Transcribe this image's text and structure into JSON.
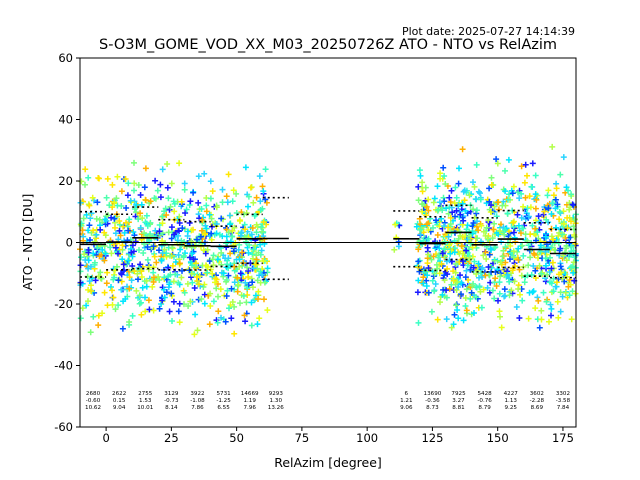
{
  "chart_data": {
    "type": "scatter",
    "plot_date": "Plot date: 2025-07-27 14:14:39",
    "title": "S-O3M_GOME_VOD_XX_M03_20250726Z ATO - NTO vs RelAzim",
    "xlabel": "RelAzim [degree]",
    "ylabel": "ATO - NTO [DU]",
    "xlim": [
      -10,
      180
    ],
    "ylim": [
      -60,
      60
    ],
    "xticks": [
      0,
      25,
      50,
      75,
      100,
      125,
      150,
      175
    ],
    "yticks": [
      -60,
      -40,
      -20,
      0,
      20,
      40,
      60
    ],
    "marker": "+",
    "grid": false,
    "point_colors": [
      "#2ad4ff",
      "#00e5ff",
      "#3affc4",
      "#4dffad",
      "#7dff7a",
      "#b3ff4a",
      "#e6ff1a",
      "#ffe600",
      "#ffb000",
      "#0050ff",
      "#1a1aff"
    ],
    "scatter_ranges": [
      {
        "x": [
          -10,
          62
        ],
        "y": [
          -35,
          30
        ]
      },
      {
        "x": [
          110,
          113
        ],
        "y": [
          -12,
          14
        ]
      },
      {
        "x": [
          119,
          180
        ],
        "y": [
          -35,
          33
        ]
      }
    ],
    "bins": [
      {
        "x": -5,
        "n": 2680,
        "mean": -0.6,
        "sd": 10.62
      },
      {
        "x": 5,
        "n": 2622,
        "mean": 0.15,
        "sd": 9.04
      },
      {
        "x": 15,
        "n": 2755,
        "mean": 1.53,
        "sd": 10.01
      },
      {
        "x": 25,
        "n": 3129,
        "mean": -0.73,
        "sd": 8.14
      },
      {
        "x": 35,
        "n": 3922,
        "mean": -1.08,
        "sd": 7.86
      },
      {
        "x": 45,
        "n": 5731,
        "mean": -1.25,
        "sd": 6.55
      },
      {
        "x": 55,
        "n": 14669,
        "mean": 1.19,
        "sd": 7.96
      },
      {
        "x": 65,
        "n": 9293,
        "mean": 1.3,
        "sd": 13.26
      },
      {
        "x": 115,
        "n": 6,
        "mean": 1.21,
        "sd": 9.06
      },
      {
        "x": 125,
        "n": 13690,
        "mean": -0.36,
        "sd": 8.73
      },
      {
        "x": 135,
        "n": 7925,
        "mean": 3.27,
        "sd": 8.81
      },
      {
        "x": 145,
        "n": 5428,
        "mean": -0.76,
        "sd": 8.79
      },
      {
        "x": 155,
        "n": 4227,
        "mean": 1.13,
        "sd": 9.25
      },
      {
        "x": 165,
        "n": 3602,
        "mean": -2.28,
        "sd": 8.69
      },
      {
        "x": 175,
        "n": 3302,
        "mean": -3.58,
        "sd": 7.84
      }
    ]
  }
}
